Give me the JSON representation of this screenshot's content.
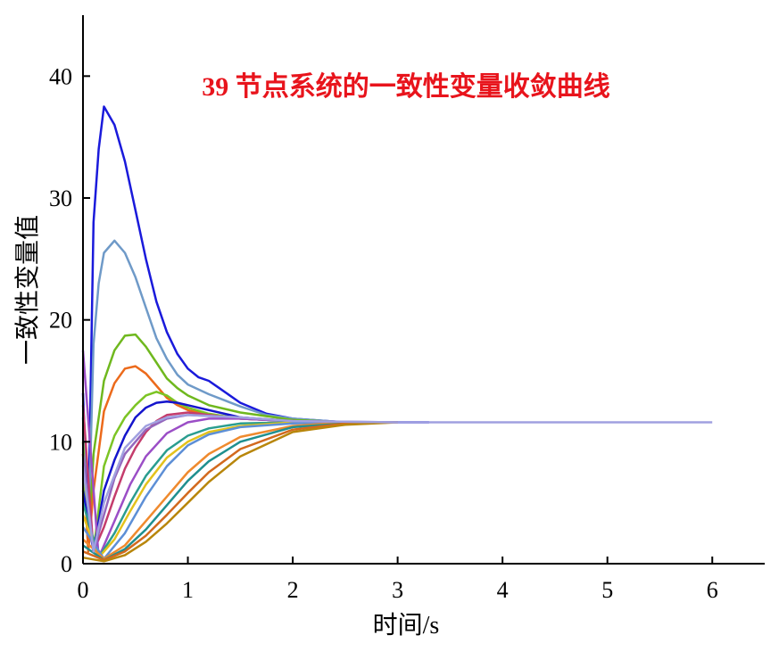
{
  "chart_data": {
    "type": "line",
    "title": "39 节点系统的一致性变量收敛曲线",
    "title_color": "#e8141c",
    "xlabel": "时间/s",
    "ylabel": "一致性变量值",
    "xlim": [
      0,
      6.5
    ],
    "ylim": [
      0,
      45
    ],
    "xticks": [
      "0",
      "1",
      "2",
      "3",
      "4",
      "5",
      "6"
    ],
    "yticks": [
      "0",
      "10",
      "20",
      "30",
      "40"
    ],
    "grid": false,
    "legend": "none",
    "converged_value": 11.6,
    "series": [
      {
        "color": "#1a1adb",
        "x": [
          0,
          0.05,
          0.1,
          0.15,
          0.2,
          0.3,
          0.4,
          0.5,
          0.6,
          0.7,
          0.8,
          0.9,
          1.0,
          1.1,
          1.2,
          1.3,
          1.5,
          1.75,
          2.0,
          2.5,
          3.3
        ],
        "y": [
          14,
          3,
          28,
          34,
          37.5,
          36,
          33,
          29,
          25,
          21.5,
          19,
          17.2,
          16,
          15.3,
          15,
          14.4,
          13.2,
          12.3,
          11.9,
          11.6,
          11.6
        ]
      },
      {
        "color": "#6f9ac8",
        "x": [
          0,
          0.05,
          0.1,
          0.15,
          0.2,
          0.3,
          0.4,
          0.5,
          0.6,
          0.7,
          0.8,
          0.9,
          1.0,
          1.2,
          1.5,
          1.75,
          2.0,
          2.5,
          3.0
        ],
        "y": [
          12,
          2,
          18,
          23,
          25.5,
          26.5,
          25.5,
          23.5,
          21,
          18.5,
          16.8,
          15.5,
          14.7,
          13.9,
          12.9,
          12.2,
          11.9,
          11.6,
          11.6
        ]
      },
      {
        "color": "#6fb81e",
        "x": [
          0,
          0.05,
          0.1,
          0.2,
          0.3,
          0.4,
          0.5,
          0.6,
          0.7,
          0.8,
          0.9,
          1.0,
          1.2,
          1.5,
          2.0,
          2.5,
          3.0
        ],
        "y": [
          10,
          1,
          9,
          15,
          17.5,
          18.7,
          18.8,
          17.8,
          16.5,
          15.2,
          14.4,
          13.8,
          13,
          12.4,
          11.8,
          11.6,
          11.6
        ]
      },
      {
        "color": "#ec6a1b",
        "x": [
          0,
          0.05,
          0.1,
          0.2,
          0.3,
          0.4,
          0.5,
          0.6,
          0.7,
          0.8,
          0.9,
          1.0,
          1.2,
          1.5,
          2.0,
          2.5,
          3.0
        ],
        "y": [
          9,
          1,
          6,
          12.5,
          14.8,
          16,
          16.2,
          15.6,
          14.6,
          13.6,
          13,
          12.6,
          12.2,
          11.9,
          11.7,
          11.6,
          11.6
        ]
      },
      {
        "color": "#7cc424",
        "x": [
          0,
          0.1,
          0.2,
          0.3,
          0.4,
          0.5,
          0.6,
          0.7,
          0.8,
          0.9,
          1.0,
          1.2,
          1.5,
          2.0,
          2.5,
          3.0
        ],
        "y": [
          7,
          1,
          8,
          10.5,
          12,
          13,
          13.8,
          14.1,
          13.8,
          13.2,
          12.8,
          12.3,
          11.9,
          11.7,
          11.6,
          11.6
        ]
      },
      {
        "color": "#1414cc",
        "x": [
          0,
          0.1,
          0.2,
          0.3,
          0.4,
          0.5,
          0.6,
          0.7,
          0.8,
          0.9,
          1.0,
          1.2,
          1.5,
          2.0,
          2.5,
          3.0
        ],
        "y": [
          6,
          1,
          6,
          8.5,
          10.5,
          12,
          12.8,
          13.2,
          13.3,
          13.2,
          13,
          12.6,
          12,
          11.7,
          11.6,
          11.6
        ]
      },
      {
        "color": "#c43c6c",
        "x": [
          0,
          0.1,
          0.2,
          0.3,
          0.4,
          0.5,
          0.6,
          0.7,
          0.8,
          1.0,
          1.2,
          1.5,
          2.0,
          2.5,
          3.0
        ],
        "y": [
          13,
          1,
          3,
          5.5,
          7.8,
          9.5,
          10.8,
          11.7,
          12.2,
          12.4,
          12.2,
          11.9,
          11.7,
          11.6,
          11.6
        ]
      },
      {
        "color": "#9b4ec6",
        "x": [
          0,
          0.15,
          0.3,
          0.45,
          0.6,
          0.8,
          1.0,
          1.2,
          1.5,
          2.0,
          2.5,
          3.0
        ],
        "y": [
          17.5,
          0.5,
          3.5,
          6.5,
          8.8,
          10.7,
          11.6,
          11.9,
          11.9,
          11.7,
          11.6,
          11.6
        ]
      },
      {
        "color": "#2a9d8f",
        "x": [
          0,
          0.15,
          0.3,
          0.45,
          0.6,
          0.8,
          1.0,
          1.2,
          1.5,
          2.0,
          2.5,
          3.0
        ],
        "y": [
          5,
          0.5,
          2.5,
          5,
          7.2,
          9.3,
          10.5,
          11.1,
          11.5,
          11.6,
          11.6,
          11.6
        ]
      },
      {
        "color": "#e3c21c",
        "x": [
          0,
          0.15,
          0.3,
          0.45,
          0.6,
          0.8,
          1.0,
          1.2,
          1.5,
          2.0,
          2.5,
          3.0
        ],
        "y": [
          4,
          0.5,
          2,
          4.3,
          6.5,
          8.7,
          10,
          10.8,
          11.3,
          11.6,
          11.6,
          11.6
        ]
      },
      {
        "color": "#5d8fd6",
        "x": [
          0,
          0.2,
          0.4,
          0.6,
          0.8,
          1.0,
          1.2,
          1.5,
          2.0,
          2.5,
          3.0
        ],
        "y": [
          3,
          0.4,
          2.5,
          5.5,
          8,
          9.7,
          10.6,
          11.2,
          11.5,
          11.6,
          11.6
        ]
      },
      {
        "color": "#ef8a2e",
        "x": [
          0,
          0.2,
          0.4,
          0.6,
          0.8,
          1.0,
          1.2,
          1.5,
          2.0,
          2.5,
          3.0
        ],
        "y": [
          2,
          0.4,
          1.5,
          3.5,
          5.5,
          7.5,
          9,
          10.4,
          11.3,
          11.6,
          11.6
        ]
      },
      {
        "color": "#1f8f8f",
        "x": [
          0,
          0.2,
          0.4,
          0.6,
          0.8,
          1.0,
          1.2,
          1.5,
          2.0,
          2.5,
          3.0
        ],
        "y": [
          1.5,
          0.3,
          1.2,
          2.8,
          4.8,
          6.8,
          8.4,
          10,
          11.2,
          11.5,
          11.6
        ]
      },
      {
        "color": "#d2691e",
        "x": [
          0,
          0.2,
          0.4,
          0.6,
          0.8,
          1.0,
          1.2,
          1.5,
          2.0,
          2.5,
          3.0
        ],
        "y": [
          1,
          0.3,
          1,
          2.3,
          4,
          5.8,
          7.5,
          9.4,
          11,
          11.5,
          11.6
        ]
      },
      {
        "color": "#b8860b",
        "x": [
          0,
          0.2,
          0.4,
          0.6,
          0.8,
          1.0,
          1.2,
          1.5,
          2.0,
          2.5,
          3.0
        ],
        "y": [
          0.5,
          0.2,
          0.7,
          1.8,
          3.3,
          5,
          6.7,
          8.8,
          10.8,
          11.4,
          11.6
        ]
      },
      {
        "color": "#9467bd",
        "x": [
          0,
          0.1,
          0.2,
          0.3,
          0.4,
          0.6,
          0.8,
          1.0,
          1.5,
          2.0,
          3.0
        ],
        "y": [
          9,
          1,
          4,
          7,
          9,
          11,
          11.9,
          12.2,
          12,
          11.7,
          11.6
        ]
      },
      {
        "color": "#a0a0e0",
        "x": [
          0,
          0.1,
          0.2,
          0.4,
          0.6,
          0.8,
          1.0,
          1.5,
          2.0,
          3.0,
          6.0
        ],
        "y": [
          8,
          1,
          5,
          9.5,
          11.3,
          12,
          12.2,
          12,
          11.7,
          11.6,
          11.6
        ]
      }
    ]
  }
}
